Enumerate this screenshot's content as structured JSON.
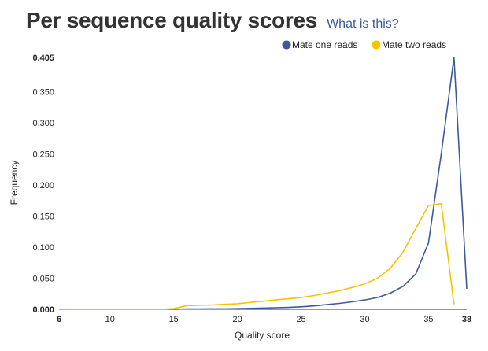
{
  "header": {
    "title": "Per sequence quality scores",
    "help_link": "What is this?"
  },
  "chart_data": {
    "type": "line",
    "title": "Per sequence quality scores",
    "xlabel": "Quality score",
    "ylabel": "Frequency",
    "xlim": [
      6,
      38
    ],
    "ylim": [
      0,
      0.405
    ],
    "x_ticks": [
      6,
      10,
      15,
      20,
      25,
      30,
      35,
      38
    ],
    "y_ticks": [
      0,
      0.05,
      0.1,
      0.15,
      0.2,
      0.25,
      0.3,
      0.35,
      0.405
    ],
    "x_tick_labels": [
      "6",
      "10",
      "15",
      "20",
      "25",
      "30",
      "35",
      "38"
    ],
    "y_tick_labels": [
      "0.000",
      "0.050",
      "0.100",
      "0.150",
      "0.200",
      "0.250",
      "0.300",
      "0.350",
      "0.405"
    ],
    "legend_position": "top-right",
    "grid": false,
    "series": [
      {
        "name": "Mate one reads",
        "color": "#3a5a99",
        "x": [
          6,
          14,
          15,
          16,
          17,
          18,
          19,
          20,
          21,
          22,
          23,
          24,
          25,
          26,
          27,
          28,
          29,
          30,
          31,
          32,
          33,
          34,
          35,
          36,
          37,
          38
        ],
        "values": [
          0,
          0,
          0,
          0.0005,
          0.0006,
          0.0007,
          0.0008,
          0.001,
          0.0015,
          0.002,
          0.0025,
          0.003,
          0.004,
          0.0055,
          0.0075,
          0.0095,
          0.012,
          0.015,
          0.019,
          0.026,
          0.037,
          0.057,
          0.107,
          0.25,
          0.405,
          0.033
        ]
      },
      {
        "name": "Mate two reads",
        "color": "#f5c400",
        "x": [
          6,
          14,
          15,
          16,
          17,
          18,
          19,
          20,
          21,
          22,
          23,
          24,
          25,
          26,
          27,
          28,
          29,
          30,
          31,
          32,
          33,
          34,
          35,
          36,
          37
        ],
        "values": [
          0,
          0,
          0.001,
          0.006,
          0.0065,
          0.007,
          0.008,
          0.009,
          0.011,
          0.013,
          0.015,
          0.017,
          0.019,
          0.022,
          0.026,
          0.03,
          0.035,
          0.041,
          0.05,
          0.066,
          0.092,
          0.13,
          0.167,
          0.17,
          0.008
        ]
      }
    ]
  }
}
